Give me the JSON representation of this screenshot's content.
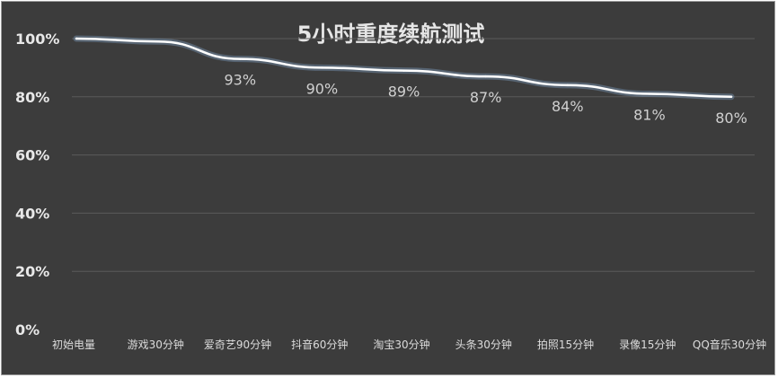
{
  "chart_data": {
    "type": "line",
    "title": "5小时重度续航测试",
    "categories": [
      "初始电量",
      "游戏30分钟",
      "爱奇艺90分钟",
      "抖音60分钟",
      "淘宝30分钟",
      "头条30分钟",
      "拍照15分钟",
      "录像15分钟",
      "QQ音乐30分钟"
    ],
    "series": [
      {
        "values": [
          100,
          99,
          93,
          90,
          89,
          87,
          84,
          81,
          80
        ]
      }
    ],
    "data_labels": [
      "",
      "",
      "93%",
      "90%",
      "89%",
      "87%",
      "84%",
      "81%",
      "80%"
    ],
    "ylim": [
      0,
      100
    ],
    "yticks": [
      0,
      20,
      40,
      60,
      80,
      100
    ],
    "ytick_labels": [
      "0%",
      "20%",
      "40%",
      "60%",
      "80%",
      "100%"
    ],
    "xlabel": "",
    "ylabel": "",
    "grid": true,
    "line_color": "#ffffff",
    "background_color": "#3c3c3c"
  }
}
